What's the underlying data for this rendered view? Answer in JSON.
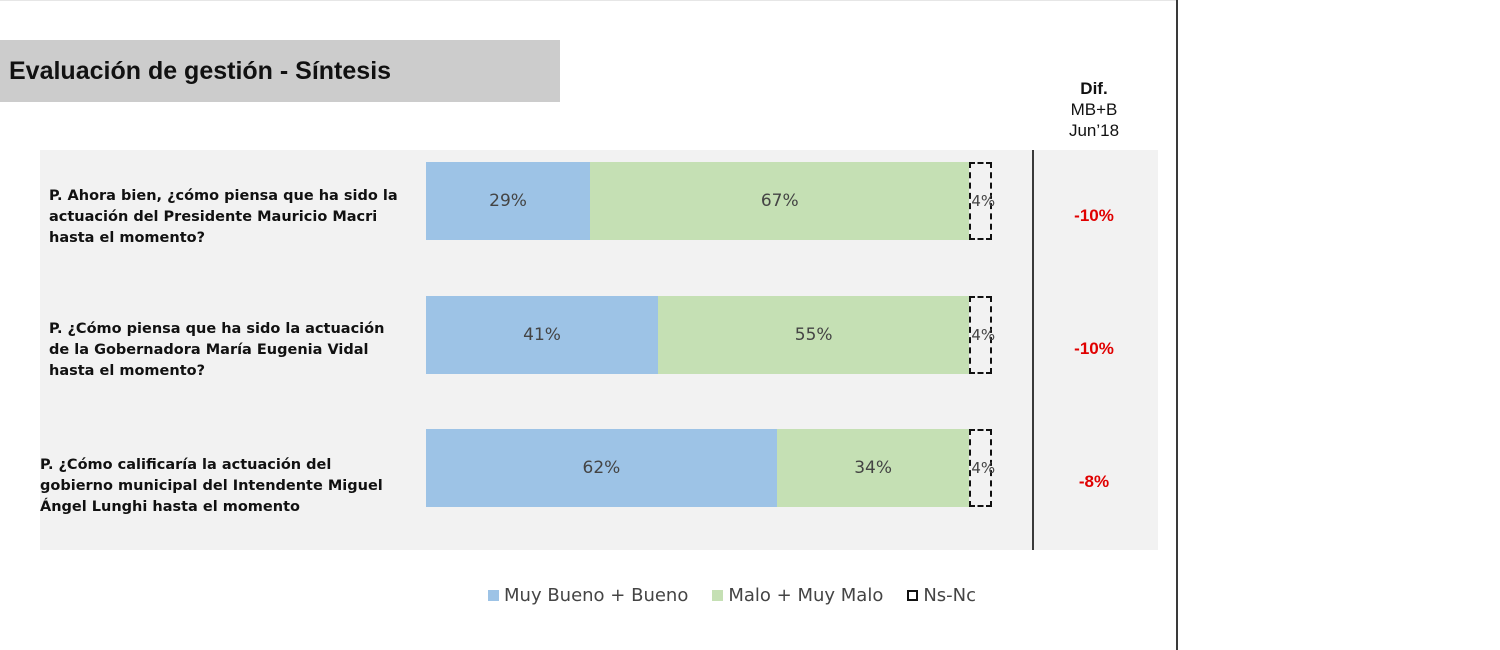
{
  "title": "Evaluación de gestión - Síntesis",
  "dif_header": {
    "line1": "Dif.",
    "line2": "MB+B",
    "line3": "Jun’18"
  },
  "chart_data": {
    "type": "bar",
    "stacked": true,
    "orientation": "horizontal",
    "categories": [
      "P. Ahora bien, ¿cómo piensa que ha sido la actuación del Presidente Mauricio Macri hasta el momento?",
      "P. ¿Cómo piensa que ha sido la actuación de la Gobernadora María Eugenia Vidal hasta el momento?",
      "P. ¿Cómo calificaría la actuación del gobierno municipal del Intendente Miguel Ángel Lunghi hasta el momento"
    ],
    "series": [
      {
        "name": "Muy Bueno + Bueno",
        "values": [
          29,
          41,
          62
        ],
        "labels": [
          "29%",
          "41%",
          "62%"
        ],
        "color": "#9dc3e6"
      },
      {
        "name": "Malo + Muy Malo",
        "values": [
          67,
          55,
          34
        ],
        "labels": [
          "67%",
          "55%",
          "34%"
        ],
        "color": "#c5e0b4"
      },
      {
        "name": "Ns-Nc",
        "values": [
          4,
          4,
          4
        ],
        "labels": [
          "4%",
          "4%",
          "4%"
        ],
        "style": "dashed-outline"
      }
    ],
    "xlim": [
      0,
      100
    ],
    "legend": "bottom",
    "dif_values": [
      "-10%",
      "-10%",
      "-8%"
    ],
    "dif_color": "#e00000"
  }
}
